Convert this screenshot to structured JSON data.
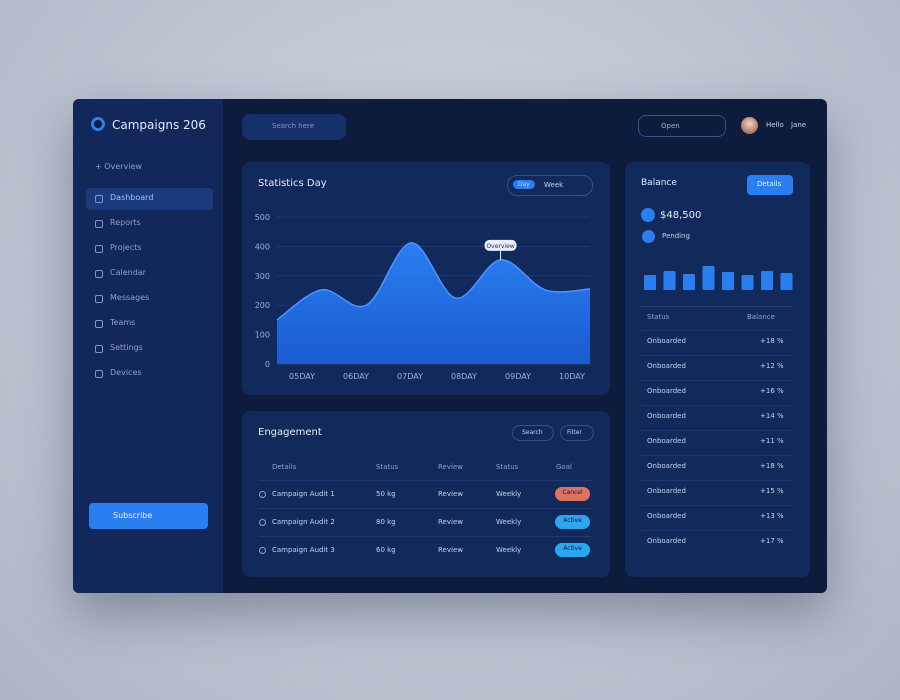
{
  "header": {
    "brand": "Campaigns 206",
    "search": "Search here",
    "filter": "Open",
    "user": "Hello",
    "user2": "Jane"
  },
  "sidebar": {
    "section": "+ Overview",
    "items": [
      "Dashboard",
      "Reports",
      "Projects",
      "Calendar",
      "Messages",
      "Teams",
      "Settings",
      "Devices"
    ],
    "button": "Subscribe"
  },
  "chart": {
    "title": "Statistics Day",
    "toggle": [
      "Day",
      "Week"
    ],
    "callout": "Overview",
    "color": "#2a7ff0",
    "ylim": [
      0,
      500
    ],
    "yticks": [
      0,
      100,
      200,
      300,
      400,
      500
    ],
    "values": [
      150,
      252,
      200,
      412,
      224,
      354,
      252,
      255
    ],
    "x_labels": [
      "05DAY",
      "06DAY",
      "07DAY",
      "08DAY",
      "09DAY",
      "10DAY"
    ]
  },
  "summary": {
    "title": "Balance",
    "button": "Details",
    "legend": [
      "$48,500",
      "Pending"
    ],
    "bar_color": "#2a7ff0",
    "bars": [
      15,
      19,
      16,
      24,
      18,
      15,
      19,
      17
    ],
    "list_header": [
      "Status",
      "Balance"
    ],
    "rows": [
      [
        "Onboarded",
        "+18 %"
      ],
      [
        "Onboarded",
        "+12 %"
      ],
      [
        "Onboarded",
        "+16 %"
      ],
      [
        "Onboarded",
        "+14 %"
      ],
      [
        "Onboarded",
        "+11 %"
      ],
      [
        "Onboarded",
        "+18 %"
      ],
      [
        "Onboarded",
        "+15 %"
      ],
      [
        "Onboarded",
        "+13 %"
      ],
      [
        "Onboarded",
        "+17 %"
      ]
    ]
  },
  "table": {
    "title": "Engagement",
    "filters": [
      "Search",
      "Filter"
    ],
    "header": [
      "Details",
      "Status",
      "Review",
      "Status",
      "Goal"
    ],
    "rows": [
      {
        "cells": [
          "Campaign Audit 1",
          "50 kg",
          "Review",
          "Weekly"
        ],
        "status": "Cancel",
        "color": "#e0735f"
      },
      {
        "cells": [
          "Campaign Audit 2",
          "80 kg",
          "Review",
          "Weekly"
        ],
        "status": "Active",
        "color": "#2aa7f0"
      },
      {
        "cells": [
          "Campaign Audit 3",
          "60 kg",
          "Review",
          "Weekly"
        ],
        "status": "Active",
        "color": "#2aa7f0"
      }
    ]
  }
}
